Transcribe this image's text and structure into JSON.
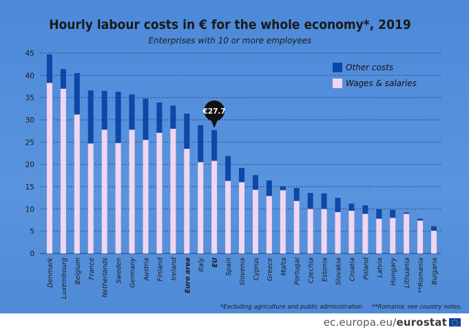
{
  "chart_data": {
    "type": "bar",
    "stacked": true,
    "title": "Hourly labour costs in € for the whole economy*, 2019",
    "subtitle": "Enterprises with 10 or more employees",
    "ylim": [
      0,
      45
    ],
    "yticks": [
      0,
      5,
      10,
      15,
      20,
      25,
      30,
      35,
      40,
      45
    ],
    "grid": true,
    "legend_position": "top-right",
    "categories": [
      "Denmark",
      "Luxembourg",
      "Belgium",
      "France",
      "Netherlands",
      "Sweden",
      "Germany",
      "Austria",
      "Finland",
      "Ireland",
      "Euro area",
      "Italy",
      "EU",
      "Spain",
      "Slovenia",
      "Cyprus",
      "Greece",
      "Malta",
      "Portugal",
      "Czechia",
      "Estonia",
      "Slovakia",
      "Croatia",
      "Poland",
      "Latvia",
      "Hungary",
      "Lithuania",
      "**Romania",
      "Bulgaria"
    ],
    "bold_categories": [
      "Euro area",
      "EU"
    ],
    "series": [
      {
        "name": "Wages & salaries",
        "color": "#f0d6ee",
        "values": [
          38.3,
          37.0,
          31.2,
          24.7,
          27.8,
          24.8,
          27.8,
          25.5,
          27.1,
          28.0,
          23.5,
          20.5,
          20.8,
          16.3,
          16.0,
          14.3,
          12.9,
          14.2,
          11.8,
          10.0,
          10.0,
          9.3,
          9.6,
          8.9,
          7.8,
          8.0,
          8.9,
          7.4,
          5.1
        ]
      },
      {
        "name": "Other costs",
        "color": "#0d47a8",
        "values": [
          6.4,
          4.4,
          9.3,
          11.9,
          8.7,
          11.5,
          7.9,
          9.3,
          6.8,
          5.2,
          7.9,
          8.3,
          6.9,
          5.6,
          3.2,
          3.3,
          3.5,
          0.9,
          2.9,
          3.6,
          3.5,
          3.2,
          1.6,
          1.9,
          2.1,
          1.8,
          0.3,
          0.4,
          1.0
        ]
      }
    ],
    "callout": {
      "category": "EU",
      "label": "€27.7"
    }
  },
  "notes": {
    "footnote1": "*Excluding agriculture and public administration",
    "footnote2": "**Romania: see country notes."
  },
  "footer": {
    "brand_prefix": "ec.europa.eu/",
    "brand_bold": "eurostat"
  },
  "colors": {
    "background": "#4a86d6",
    "wages": "#f0d6ee",
    "other": "#0d47a8",
    "grid": "#1f3f73",
    "text": "#1a1a1a"
  }
}
